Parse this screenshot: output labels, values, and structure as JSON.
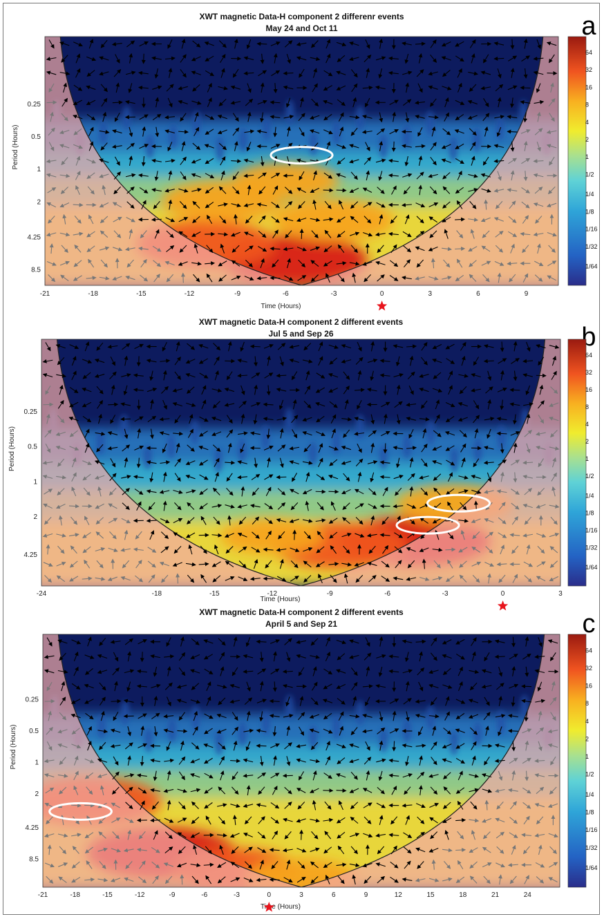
{
  "colorbar_labels": [
    "64",
    "32",
    "16",
    "8",
    "4",
    "2",
    "1",
    "1/2",
    "1/4",
    "1/8",
    "1/16",
    "1/32",
    "1/64"
  ],
  "colors": {
    "background_blue": "#0d1b5e",
    "coi_shade": "#f2aaa6",
    "marker_red": "#e8141c",
    "highlight_ellipse": "#ffffff",
    "arrow_inside": "#000000",
    "arrow_outside": "#777777"
  },
  "chart_data": [
    {
      "type": "heatmap",
      "panel_letter": "a",
      "title": "XWT magnetic Data-H component 2 differenr events",
      "subtitle": "May 24  and Oct 11",
      "xlabel": "Time (Hours)",
      "ylabel": "Period (Hours)",
      "x_ticks": [
        "-21",
        "-18",
        "-15",
        "-12",
        "-9",
        "-6",
        "-3",
        "0",
        "3",
        "6",
        "9"
      ],
      "xlim": [
        -21,
        11
      ],
      "y_ticks": [
        "0.25",
        "0.5",
        "1",
        "2",
        "4.25",
        "8.5"
      ],
      "ylim": [
        0.06,
        12
      ],
      "y_scale": "log2",
      "colorbar_ticks": [
        "64",
        "32",
        "16",
        "8",
        "4",
        "2",
        "1",
        "1/2",
        "1/4",
        "1/8",
        "1/16",
        "1/32",
        "1/64"
      ],
      "marker_time": 0,
      "high_power_regions": [
        {
          "t": -5.5,
          "p": 7.0,
          "strength": 1.0
        },
        {
          "t": -11,
          "p": 5.0,
          "strength": 0.9
        },
        {
          "t": -10,
          "p": 2.0,
          "strength": 0.7
        },
        {
          "t": -6,
          "p": 1.3,
          "strength": 0.55
        },
        {
          "t": -3,
          "p": 3.0,
          "strength": 0.7
        }
      ],
      "highlight_ellipses": [
        {
          "t": -5,
          "p": 0.75
        }
      ]
    },
    {
      "type": "heatmap",
      "panel_letter": "b",
      "title": "XWT magnetic Data-H component 2 different events",
      "subtitle": "Jul 5  and  Sep 26",
      "xlabel": "Time (Hours)",
      "ylabel": "Period (Hours)",
      "x_ticks": [
        "-24",
        "-18",
        "-15",
        "-12",
        "-9",
        "-6",
        "-3",
        "0",
        "3"
      ],
      "xlim": [
        -24,
        3
      ],
      "y_ticks": [
        "0.25",
        "0.5",
        "1",
        "2",
        "4.25"
      ],
      "ylim": [
        0.06,
        8
      ],
      "y_scale": "log2",
      "colorbar_ticks": [
        "64",
        "32",
        "16",
        "8",
        "4",
        "2",
        "1",
        "1/2",
        "1/4",
        "1/8",
        "1/16",
        "1/32",
        "1/64"
      ],
      "marker_time": 0,
      "high_power_regions": [
        {
          "t": -4.5,
          "p": 3.3,
          "strength": 1.0
        },
        {
          "t": -8.5,
          "p": 3.6,
          "strength": 0.85
        },
        {
          "t": -2.5,
          "p": 1.6,
          "strength": 0.65
        },
        {
          "t": -12,
          "p": 3.0,
          "strength": 0.5
        }
      ],
      "highlight_ellipses": [
        {
          "t": -2.3,
          "p": 1.55
        },
        {
          "t": -3.9,
          "p": 2.4
        }
      ]
    },
    {
      "type": "heatmap",
      "panel_letter": "c",
      "title": "XWT magnetic Data-H component 2 different events",
      "subtitle": "April 5  and Sep 21",
      "xlabel": "Time (Hours)",
      "ylabel": "Period (Hours)",
      "x_ticks": [
        "-21",
        "-18",
        "-15",
        "-12",
        "-9",
        "-6",
        "-3",
        "0",
        "3",
        "6",
        "9",
        "12",
        "15",
        "18",
        "21",
        "24"
      ],
      "xlim": [
        -21,
        27
      ],
      "y_ticks": [
        "0.25",
        "0.5",
        "1",
        "2",
        "4.25",
        "8.5"
      ],
      "ylim": [
        0.06,
        16
      ],
      "y_scale": "log2",
      "colorbar_ticks": [
        "64",
        "32",
        "16",
        "8",
        "4",
        "2",
        "1",
        "1/2",
        "1/4",
        "1/8",
        "1/16",
        "1/32",
        "1/64"
      ],
      "marker_time": 0,
      "high_power_regions": [
        {
          "t": -10,
          "p": 7.5,
          "strength": 1.0
        },
        {
          "t": -16.5,
          "p": 2.4,
          "strength": 0.9
        },
        {
          "t": -3,
          "p": 11,
          "strength": 0.75
        },
        {
          "t": 3,
          "p": 13,
          "strength": 0.6
        }
      ],
      "highlight_ellipses": [
        {
          "t": -17.5,
          "p": 3.0
        }
      ]
    }
  ]
}
